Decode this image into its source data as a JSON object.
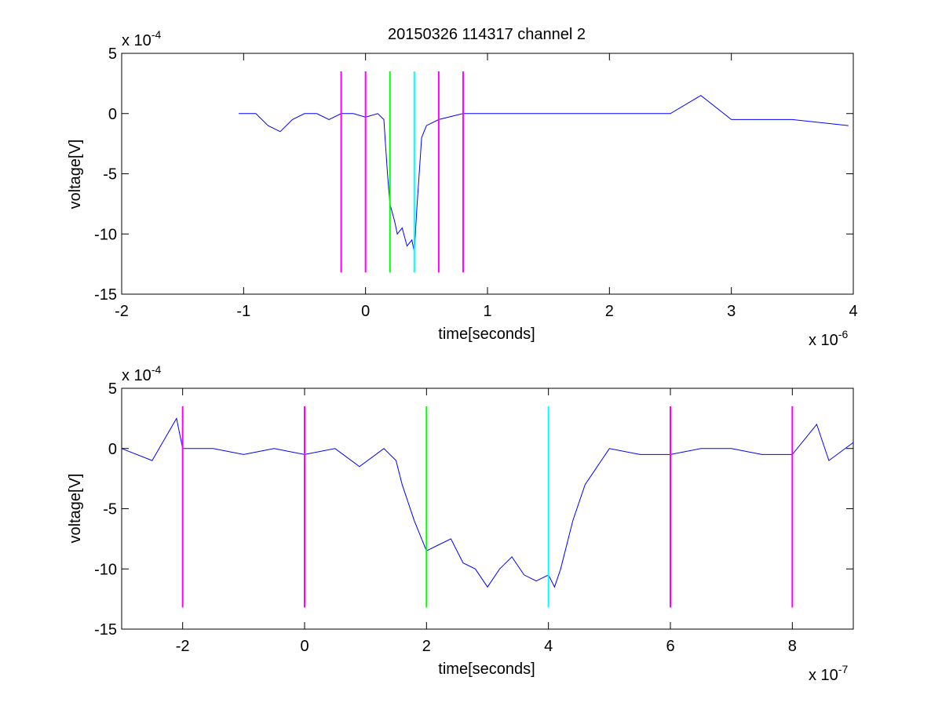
{
  "figure": {
    "title": "20150326 114317 channel 2"
  },
  "colors": {
    "trace": "#0000ff",
    "marker_magenta": "#ff00ff",
    "marker_green": "#00ff00",
    "marker_cyan": "#00ffff",
    "axes": "#000000",
    "background": "#ffffff"
  },
  "chart_data": [
    {
      "type": "line",
      "title": "20150326 114317 channel 2",
      "xlabel": "time[seconds]",
      "ylabel": "voltage[V]",
      "x_multiplier": "x 10",
      "x_exponent": "-6",
      "y_multiplier": "x 10",
      "y_exponent": "-4",
      "xlim": [
        -2,
        4
      ],
      "ylim": [
        -15,
        5
      ],
      "x_ticks": [
        "-2",
        "-1",
        "0",
        "1",
        "2",
        "3",
        "4"
      ],
      "y_ticks": [
        "5",
        "0",
        "-5",
        "-10",
        "-15"
      ],
      "series": [
        {
          "color": "#0000ff",
          "x": [
            -1.04,
            -0.9,
            -0.8,
            -0.7,
            -0.6,
            -0.5,
            -0.4,
            -0.3,
            -0.2,
            -0.1,
            0.0,
            0.1,
            0.15,
            0.16,
            0.18,
            0.2,
            0.24,
            0.26,
            0.3,
            0.34,
            0.38,
            0.4,
            0.42,
            0.44,
            0.46,
            0.5,
            0.6,
            0.8,
            1.0,
            1.5,
            2.0,
            2.5,
            2.75,
            3.0,
            3.5,
            3.96
          ],
          "y": [
            0,
            0,
            -1,
            -1.5,
            -0.5,
            0,
            0,
            -0.5,
            0,
            0,
            -0.3,
            0,
            -0.5,
            -2,
            -5,
            -7.5,
            -9,
            -10,
            -9.5,
            -11,
            -10.5,
            -11.5,
            -8,
            -5,
            -2,
            -1,
            -0.5,
            0,
            0,
            0,
            0,
            0,
            1.5,
            -0.5,
            -0.5,
            -1
          ]
        }
      ],
      "markers": [
        {
          "x": -0.2,
          "color": "#ff00ff"
        },
        {
          "x": 0.0,
          "color": "#ff00ff"
        },
        {
          "x": 0.2,
          "color": "#00ff00"
        },
        {
          "x": 0.4,
          "color": "#00ffff"
        },
        {
          "x": 0.6,
          "color": "#ff00ff"
        },
        {
          "x": 0.8,
          "color": "#ff00ff"
        }
      ],
      "marker_range": [
        -13.2,
        3.5
      ]
    },
    {
      "type": "line",
      "xlabel": "time[seconds]",
      "ylabel": "voltage[V]",
      "x_multiplier": "x 10",
      "x_exponent": "-7",
      "y_multiplier": "x 10",
      "y_exponent": "-4",
      "xlim": [
        -3,
        9
      ],
      "ylim": [
        -15,
        5
      ],
      "x_ticks": [
        "-2",
        "0",
        "2",
        "4",
        "6",
        "8"
      ],
      "y_ticks": [
        "5",
        "0",
        "-5",
        "-10",
        "-15"
      ],
      "series": [
        {
          "color": "#0000ff",
          "x": [
            -3.0,
            -2.5,
            -2.1,
            -2.0,
            -1.5,
            -1.0,
            -0.5,
            0.0,
            0.5,
            0.9,
            1.3,
            1.5,
            1.6,
            1.8,
            2.0,
            2.2,
            2.4,
            2.6,
            2.8,
            3.0,
            3.2,
            3.4,
            3.6,
            3.8,
            4.0,
            4.1,
            4.2,
            4.4,
            4.6,
            4.8,
            5.0,
            5.5,
            6.0,
            6.5,
            7.0,
            7.5,
            8.0,
            8.4,
            8.6,
            9.0
          ],
          "y": [
            0,
            -1,
            2.5,
            0,
            0,
            -0.5,
            0,
            -0.5,
            0,
            -1.5,
            0,
            -1,
            -3,
            -6,
            -8.5,
            -8,
            -7.5,
            -9.5,
            -10,
            -11.5,
            -10,
            -9,
            -10.5,
            -11,
            -10.5,
            -11.5,
            -10,
            -6,
            -3,
            -1.5,
            0,
            -0.5,
            -0.5,
            0,
            0,
            -0.5,
            -0.5,
            2,
            -1,
            0.5
          ]
        }
      ],
      "markers": [
        {
          "x": -2,
          "color": "#ff00ff"
        },
        {
          "x": 0,
          "color": "#ff00ff"
        },
        {
          "x": 2,
          "color": "#00ff00"
        },
        {
          "x": 4,
          "color": "#00ffff"
        },
        {
          "x": 6,
          "color": "#ff00ff"
        },
        {
          "x": 8,
          "color": "#ff00ff"
        }
      ],
      "marker_range": [
        -13.2,
        3.5
      ]
    }
  ]
}
